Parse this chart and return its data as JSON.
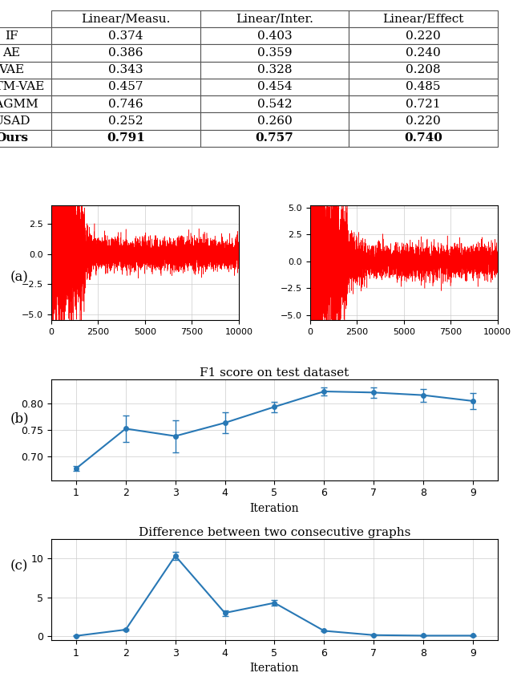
{
  "table": {
    "headers": [
      "",
      "Linear/Measu.",
      "Linear/Inter.",
      "Linear/Effect"
    ],
    "rows": [
      [
        "IF",
        "0.374",
        "0.403",
        "0.220"
      ],
      [
        "AE",
        "0.386",
        "0.359",
        "0.240"
      ],
      [
        "VAE",
        "0.343",
        "0.328",
        "0.208"
      ],
      [
        "LSTM-VAE",
        "0.457",
        "0.454",
        "0.485"
      ],
      [
        "DAGMM",
        "0.746",
        "0.542",
        "0.721"
      ],
      [
        "USAD",
        "0.252",
        "0.260",
        "0.220"
      ],
      [
        "Ours",
        "0.791",
        "0.757",
        "0.740"
      ]
    ]
  },
  "ts_left": {
    "xlim": [
      0,
      10000
    ],
    "ylim": [
      -5.5,
      4.0
    ],
    "yticks": [
      -5.0,
      -2.5,
      0.0,
      2.5
    ],
    "xticks": [
      0,
      2500,
      5000,
      7500,
      10000
    ],
    "color": "#ff0000"
  },
  "ts_right": {
    "xlim": [
      0,
      10000
    ],
    "ylim": [
      -5.5,
      5.2
    ],
    "yticks": [
      -5.0,
      -2.5,
      0.0,
      2.5,
      5.0
    ],
    "xticks": [
      0,
      2500,
      5000,
      7500,
      10000
    ],
    "color": "#ff0000"
  },
  "panel_b": {
    "title": "F1 score on test dataset",
    "xlabel": "Iteration",
    "x": [
      1,
      2,
      3,
      4,
      5,
      6,
      7,
      8,
      9
    ],
    "y": [
      0.677,
      0.752,
      0.738,
      0.763,
      0.793,
      0.822,
      0.82,
      0.815,
      0.804
    ],
    "yerr": [
      0.005,
      0.025,
      0.03,
      0.02,
      0.01,
      0.008,
      0.01,
      0.012,
      0.015
    ],
    "ylim": [
      0.655,
      0.845
    ],
    "yticks": [
      0.7,
      0.75,
      0.8
    ],
    "xticks": [
      1,
      2,
      3,
      4,
      5,
      6,
      7,
      8,
      9
    ],
    "color": "#2878b5",
    "linewidth": 1.5
  },
  "panel_c": {
    "title": "Difference between two consecutive graphs",
    "xlabel": "Iteration",
    "x": [
      1,
      2,
      3,
      4,
      5,
      6,
      7,
      8,
      9
    ],
    "y": [
      0.05,
      0.85,
      10.35,
      3.0,
      4.3,
      0.7,
      0.15,
      0.08,
      0.08
    ],
    "yerr": [
      0.03,
      0.1,
      0.55,
      0.35,
      0.35,
      0.08,
      0.03,
      0.015,
      0.015
    ],
    "ylim": [
      -0.5,
      12.5
    ],
    "yticks": [
      0,
      5,
      10
    ],
    "xticks": [
      1,
      2,
      3,
      4,
      5,
      6,
      7,
      8,
      9
    ],
    "color": "#2878b5",
    "linewidth": 1.5
  },
  "grid_color": "#cccccc"
}
